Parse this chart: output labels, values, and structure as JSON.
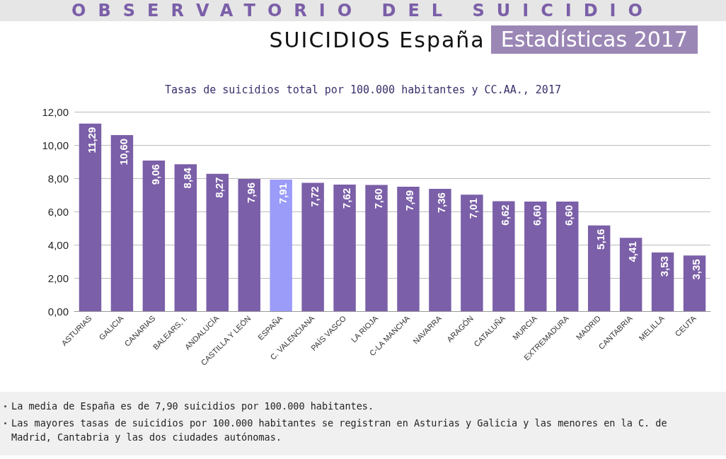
{
  "chart_data": {
    "type": "bar",
    "title": "Tasas de suicidios total por 100.000 habitantes y CC.AA., 2017",
    "subtitle": "SUICIDIOS España",
    "annotations": [
      "OBSERVATORIO DEL SUICIDIO",
      "Estadísticas 2017",
      "La media de España es de 7,90 suicidios por 100.000 habitantes.",
      "Las mayores tasas de suicidios por 100.000 habitantes se registran en Asturias y Galicia y las menores en la C. de Madrid, Cantabria y las dos ciudades autónomas."
    ],
    "categories": [
      "ASTURIAS",
      "GALICIA",
      "CANARIAS",
      "BALEARS, I.",
      "ANDALUCÍA",
      "CASTILLA Y LEÓN",
      "ESPAÑA",
      "C. VALENCIANA",
      "PAÍS VASCO",
      "LA RIOJA",
      "C-LA MANCHA",
      "NAVARRA",
      "ARAGÓN",
      "CATALUÑA",
      "MURCIA",
      "EXTREMADURA",
      "MADRID",
      "CANTABRIA",
      "MELILLA",
      "CEUTA"
    ],
    "values": [
      11.29,
      10.6,
      9.06,
      8.84,
      8.27,
      7.96,
      7.91,
      7.72,
      7.62,
      7.6,
      7.49,
      7.36,
      7.01,
      6.62,
      6.6,
      6.6,
      5.16,
      4.41,
      3.53,
      3.35
    ],
    "value_labels": [
      "11,29",
      "10,60",
      "9,06",
      "8,84",
      "8,27",
      "7,96",
      "7,91",
      "7,72",
      "7,62",
      "7,60",
      "7,49",
      "7,36",
      "7,01",
      "6,62",
      "6,60",
      "6,60",
      "5,16",
      "4,41",
      "3,53",
      "3,35"
    ],
    "colors": [
      "#7b5fa8",
      "#7b5fa8",
      "#7b5fa8",
      "#7b5fa8",
      "#7b5fa8",
      "#7b5fa8",
      "#9b9bfa",
      "#7b5fa8",
      "#7b5fa8",
      "#7b5fa8",
      "#7b5fa8",
      "#7b5fa8",
      "#7b5fa8",
      "#7b5fa8",
      "#7b5fa8",
      "#7b5fa8",
      "#7b5fa8",
      "#7b5fa8",
      "#7b5fa8",
      "#7b5fa8"
    ],
    "ylim": [
      0,
      12
    ],
    "yticks": [
      {
        "value": 0,
        "label": "0,00"
      },
      {
        "value": 2,
        "label": "2,00"
      },
      {
        "value": 4,
        "label": "4,00"
      },
      {
        "value": 6,
        "label": "6,00"
      },
      {
        "value": 8,
        "label": "8,00"
      },
      {
        "value": 10,
        "label": "10,00"
      },
      {
        "value": 12,
        "label": "12,00"
      }
    ],
    "grid": "y"
  }
}
